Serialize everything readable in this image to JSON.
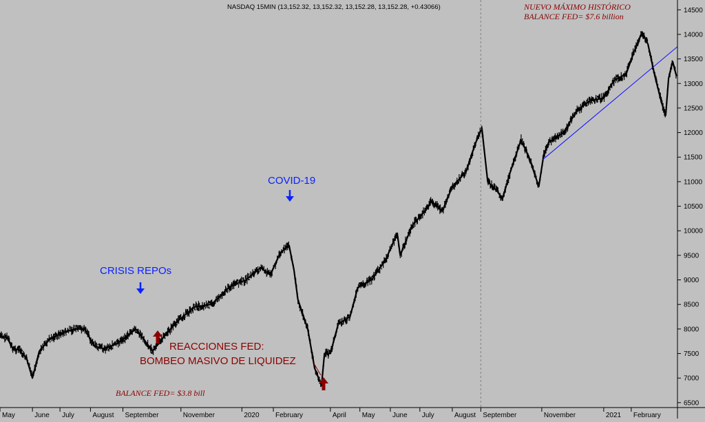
{
  "chart_data": {
    "type": "line",
    "title": "NASDAQ 15MIN (13,152.32, 13,152.32, 13,152.28, 13,152.28, +0.43066)",
    "xlabel": "",
    "ylabel": "",
    "ylim": [
      6400,
      14700
    ],
    "y_ticks": [
      6500,
      7000,
      7500,
      8000,
      8500,
      9000,
      9500,
      10000,
      10500,
      11000,
      11500,
      12000,
      12500,
      13000,
      13500,
      14000,
      14500
    ],
    "x_range": [
      "2019-05-01",
      "2021-03-20"
    ],
    "x_tick_labels": [
      {
        "label": "May",
        "date": "2019-05-01"
      },
      {
        "label": "June",
        "date": "2019-06-03"
      },
      {
        "label": "July",
        "date": "2019-07-01"
      },
      {
        "label": "August",
        "date": "2019-08-01"
      },
      {
        "label": "September",
        "date": "2019-09-03"
      },
      {
        "label": "November",
        "date": "2019-11-01"
      },
      {
        "label": "2020",
        "date": "2020-01-02"
      },
      {
        "label": "February",
        "date": "2020-02-03"
      },
      {
        "label": "April",
        "date": "2020-04-01"
      },
      {
        "label": "May",
        "date": "2020-05-01"
      },
      {
        "label": "June",
        "date": "2020-06-01"
      },
      {
        "label": "July",
        "date": "2020-07-01"
      },
      {
        "label": "August",
        "date": "2020-08-03"
      },
      {
        "label": "September",
        "date": "2020-09-01"
      },
      {
        "label": "November",
        "date": "2020-11-02"
      },
      {
        "label": "2021",
        "date": "2021-01-04"
      },
      {
        "label": "February",
        "date": "2021-02-01"
      }
    ],
    "grid": false,
    "series": [
      {
        "points": [
          [
            "2019-05-01",
            7850
          ],
          [
            "2019-05-08",
            7830
          ],
          [
            "2019-05-14",
            7600
          ],
          [
            "2019-05-20",
            7580
          ],
          [
            "2019-05-28",
            7400
          ],
          [
            "2019-06-03",
            7000
          ],
          [
            "2019-06-10",
            7550
          ],
          [
            "2019-06-20",
            7780
          ],
          [
            "2019-07-01",
            7900
          ],
          [
            "2019-07-15",
            8000
          ],
          [
            "2019-07-26",
            8000
          ],
          [
            "2019-08-05",
            7650
          ],
          [
            "2019-08-15",
            7600
          ],
          [
            "2019-08-28",
            7700
          ],
          [
            "2019-09-10",
            7900
          ],
          [
            "2019-09-16",
            8000
          ],
          [
            "2019-09-24",
            7800
          ],
          [
            "2019-10-03",
            7550
          ],
          [
            "2019-10-15",
            7850
          ],
          [
            "2019-10-28",
            8150
          ],
          [
            "2019-11-15",
            8450
          ],
          [
            "2019-12-02",
            8500
          ],
          [
            "2019-12-20",
            8850
          ],
          [
            "2020-01-06",
            9000
          ],
          [
            "2020-01-21",
            9250
          ],
          [
            "2020-01-31",
            9100
          ],
          [
            "2020-02-10",
            9550
          ],
          [
            "2020-02-19",
            9700
          ],
          [
            "2020-02-24",
            9200
          ],
          [
            "2020-02-28",
            8600
          ],
          [
            "2020-03-09",
            8000
          ],
          [
            "2020-03-16",
            7200
          ],
          [
            "2020-03-23",
            6850
          ],
          [
            "2020-03-26",
            7500
          ],
          [
            "2020-04-01",
            7500
          ],
          [
            "2020-04-09",
            8100
          ],
          [
            "2020-04-21",
            8250
          ],
          [
            "2020-04-29",
            8850
          ],
          [
            "2020-05-13",
            9000
          ],
          [
            "2020-05-27",
            9400
          ],
          [
            "2020-06-08",
            9950
          ],
          [
            "2020-06-11",
            9500
          ],
          [
            "2020-06-23",
            10100
          ],
          [
            "2020-07-06",
            10400
          ],
          [
            "2020-07-13",
            10600
          ],
          [
            "2020-07-24",
            10400
          ],
          [
            "2020-08-03",
            10900
          ],
          [
            "2020-08-17",
            11200
          ],
          [
            "2020-08-26",
            11750
          ],
          [
            "2020-09-02",
            12100
          ],
          [
            "2020-09-08",
            11000
          ],
          [
            "2020-09-18",
            10800
          ],
          [
            "2020-09-23",
            10650
          ],
          [
            "2020-10-01",
            11200
          ],
          [
            "2020-10-12",
            11850
          ],
          [
            "2020-10-20",
            11500
          ],
          [
            "2020-10-30",
            10900
          ],
          [
            "2020-11-04",
            11550
          ],
          [
            "2020-11-09",
            11800
          ],
          [
            "2020-11-13",
            11850
          ],
          [
            "2020-11-24",
            12000
          ],
          [
            "2020-12-08",
            12450
          ],
          [
            "2020-12-21",
            12650
          ],
          [
            "2021-01-04",
            12700
          ],
          [
            "2021-01-14",
            13050
          ],
          [
            "2021-01-27",
            13200
          ],
          [
            "2021-02-03",
            13600
          ],
          [
            "2021-02-12",
            14050
          ],
          [
            "2021-02-18",
            13800
          ],
          [
            "2021-02-25",
            13150
          ],
          [
            "2021-03-04",
            12600
          ],
          [
            "2021-03-08",
            12350
          ],
          [
            "2021-03-11",
            13100
          ],
          [
            "2021-03-15",
            13450
          ],
          [
            "2021-03-19",
            13150
          ]
        ]
      }
    ],
    "trendline": {
      "start": [
        "2020-11-03",
        11450
      ],
      "end": [
        "2021-03-20",
        13750
      ],
      "color": "#1010ff"
    },
    "vertical_marker": {
      "date": "2020-09-01"
    },
    "annotations": [
      {
        "text": "CRISIS REPOs",
        "date": "2019-09-10",
        "value": 8300,
        "style": "blue",
        "arrow": "down"
      },
      {
        "text": "COVID-19",
        "date": "2020-02-19",
        "value": 9850,
        "style": "blue",
        "arrow": "down"
      },
      {
        "text": "REACCIONES  FED:",
        "style": "red"
      },
      {
        "text": "BOMBEO MASIVO DE LIQUIDEZ",
        "style": "red"
      },
      {
        "text": "BALANCE FED= $3.8 bill",
        "style": "red-italic"
      },
      {
        "text": "NUEVO MÁXIMO HISTÓRICO",
        "style": "red-italic"
      },
      {
        "text": "BALANCE FED= $7.6 billion",
        "style": "red-italic"
      }
    ],
    "colors": {
      "background": "#c0c0c0",
      "price": "#000000",
      "blue_annotation": "#0a22ff",
      "red_annotation": "#8b0000"
    }
  }
}
